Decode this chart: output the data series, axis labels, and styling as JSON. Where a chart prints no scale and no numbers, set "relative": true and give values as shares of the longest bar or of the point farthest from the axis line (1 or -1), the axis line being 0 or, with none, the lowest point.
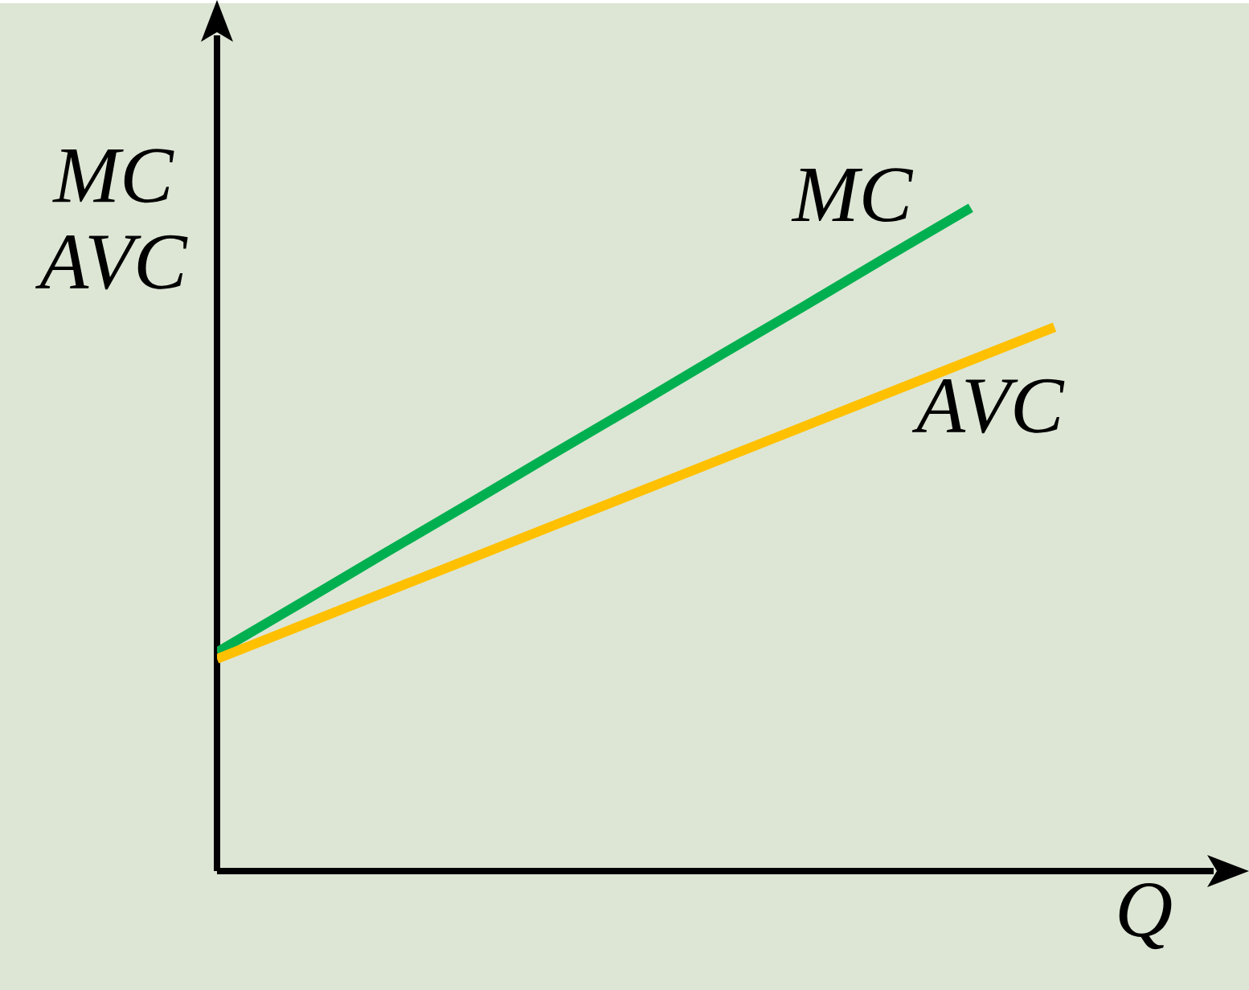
{
  "chart_data": {
    "type": "line",
    "relative": true,
    "xlabel": "Q",
    "ylabel": "MC AVC",
    "categories": [
      null,
      null,
      null,
      null,
      null,
      null,
      null,
      null,
      null,
      null,
      null
    ],
    "series": [
      {
        "name": "MC",
        "color": "#00b050",
        "values": [
          0.33,
          0.404,
          0.479,
          0.553,
          0.628,
          0.702,
          0.777,
          0.851,
          0.926,
          1.0,
          null
        ]
      },
      {
        "name": "AVC",
        "color": "#ffc000",
        "values": [
          0.32,
          0.37,
          0.42,
          0.47,
          0.52,
          0.57,
          0.62,
          0.67,
          0.72,
          0.77,
          0.82
        ]
      }
    ]
  }
}
